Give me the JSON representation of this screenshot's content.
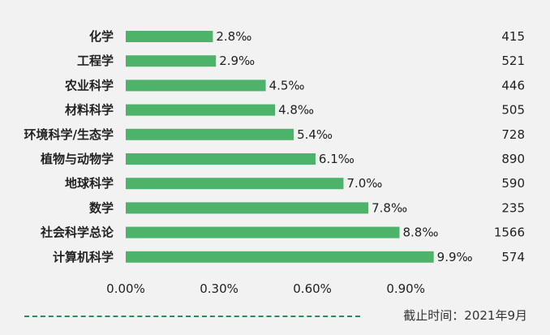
{
  "chart_data": {
    "type": "bar",
    "orientation": "horizontal",
    "categories": [
      "化学",
      "工程学",
      "农业科学",
      "材料科学",
      "环境科学/生态学",
      "植物与动物学",
      "地球科学",
      "数学",
      "社会科学总论",
      "计算机科学"
    ],
    "values": [
      0.28,
      0.29,
      0.45,
      0.48,
      0.54,
      0.61,
      0.7,
      0.78,
      0.88,
      0.99
    ],
    "value_labels": [
      "2.8‰",
      "2.9‰",
      "4.5‰",
      "4.8‰",
      "5.4‰",
      "6.1‰",
      "7.0‰",
      "7.8‰",
      "8.8‰",
      "9.9‰"
    ],
    "counts": [
      "415",
      "521",
      "446",
      "505",
      "728",
      "890",
      "590",
      "235",
      "1566",
      "574"
    ],
    "xticks": [
      "0.00%",
      "0.30%",
      "0.60%",
      "0.90%"
    ],
    "xtick_values": [
      0,
      0.3,
      0.6,
      0.9
    ],
    "xlim": [
      0,
      1.05
    ],
    "grid": false,
    "colors": {
      "bar": "#4db36b",
      "text": "#222222",
      "accent": "#2e8b57"
    }
  },
  "footer": {
    "cutoff_text": "截止时间：2021年9月"
  }
}
